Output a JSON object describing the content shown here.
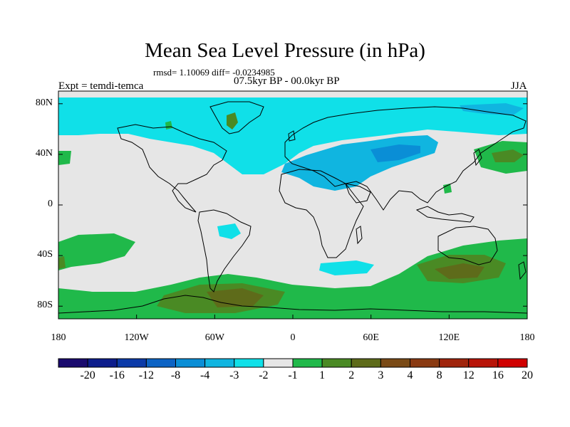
{
  "title": "Mean Sea Level Pressure (in hPa)",
  "stats": "rmsd= 1.10069 diff= -0.0234985",
  "period": "07.5kyr BP - 00.0kyr BP",
  "experiment": "Expt = temdi-temca",
  "season": "JJA",
  "map": {
    "projection": "cylindrical-equidistant",
    "lon_range": [
      -180,
      180
    ],
    "lat_range": [
      -90,
      90
    ],
    "lat_ticks": [
      {
        "value": 80,
        "label": "80N"
      },
      {
        "value": 40,
        "label": "40N"
      },
      {
        "value": 0,
        "label": "0"
      },
      {
        "value": -40,
        "label": "40S"
      },
      {
        "value": -80,
        "label": "80S"
      }
    ],
    "lon_ticks": [
      {
        "value": -180,
        "label": "180"
      },
      {
        "value": -120,
        "label": "120W"
      },
      {
        "value": -60,
        "label": "60W"
      },
      {
        "value": 0,
        "label": "0"
      },
      {
        "value": 60,
        "label": "60E"
      },
      {
        "value": 120,
        "label": "120E"
      },
      {
        "value": 180,
        "label": "180"
      }
    ],
    "background_color": "#e6e6e6",
    "coastline_color": "#000000"
  },
  "colorbar": {
    "colors": [
      "#1a0a6e",
      "#0d1d8c",
      "#0b3aa8",
      "#0c63c4",
      "#0a8ed6",
      "#10b5e0",
      "#10e0e8",
      "#e6e6e6",
      "#20b94a",
      "#4a8a24",
      "#5e6b1a",
      "#7a4a16",
      "#8a3a12",
      "#a0240c",
      "#b81408",
      "#d00000"
    ],
    "labels": [
      "-20",
      "-16",
      "-12",
      "-8",
      "-4",
      "-3",
      "-2",
      "-1",
      "1",
      "2",
      "3",
      "4",
      "8",
      "12",
      "16",
      "20"
    ]
  }
}
